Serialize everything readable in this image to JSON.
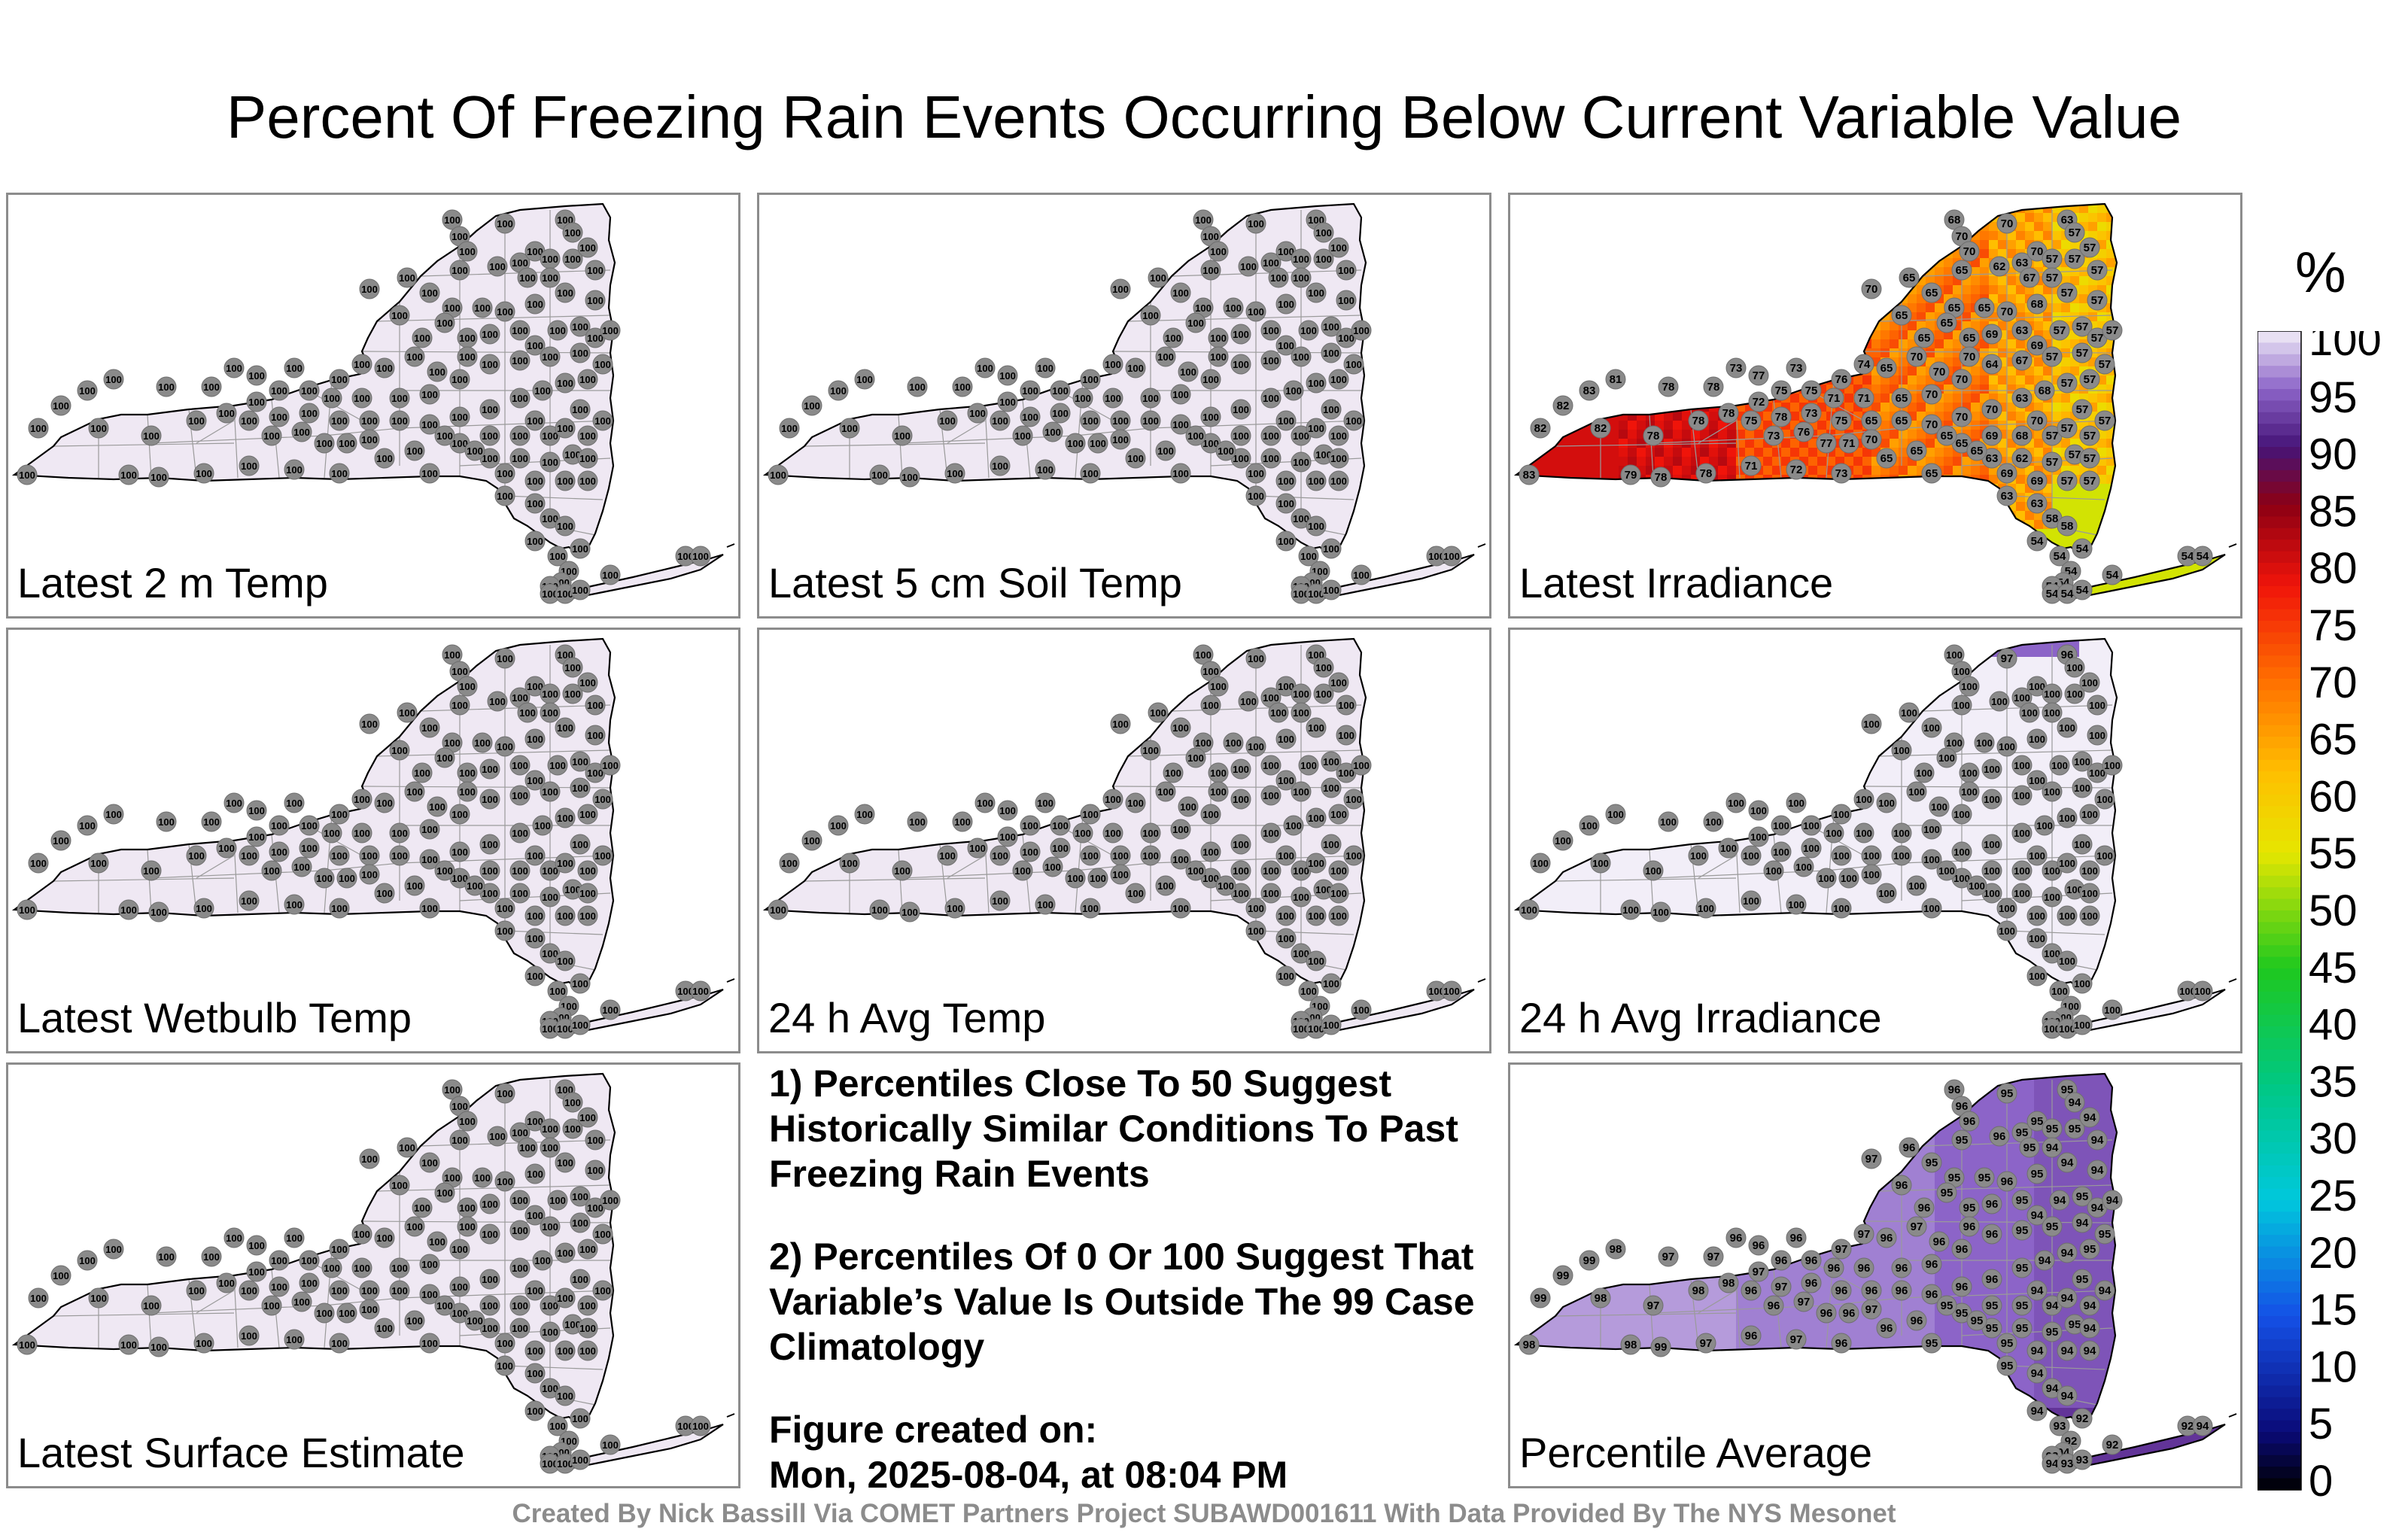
{
  "title": "Percent Of Freezing Rain Events Occurring Below Current Variable Value",
  "colorbar": {
    "unit": "%",
    "ticks": [
      "100",
      "95",
      "90",
      "85",
      "80",
      "75",
      "70",
      "65",
      "60",
      "55",
      "50",
      "45",
      "40",
      "35",
      "30",
      "25",
      "20",
      "15",
      "10",
      "5",
      "0"
    ]
  },
  "panels": [
    {
      "label": "Latest 2 m Temp",
      "mode": "uniform",
      "value": "100"
    },
    {
      "label": "Latest 5 cm Soil Temp",
      "mode": "uniform",
      "value": "100"
    },
    {
      "label": "Latest Irradiance",
      "mode": "irradiance"
    },
    {
      "label": "Latest Wetbulb Temp",
      "mode": "uniform",
      "value": "100"
    },
    {
      "label": "24 h Avg Temp",
      "mode": "uniform",
      "value": "100"
    },
    {
      "label": "24 h Avg Irradiance",
      "mode": "avg_irradiance"
    },
    {
      "label": "Latest Surface Estimate",
      "mode": "uniform",
      "value": "100"
    },
    {
      "label": "Percentile Average",
      "mode": "average"
    }
  ],
  "notes": {
    "note1": "1) Percentiles Close To 50 Suggest Historically Similar Conditions To Past Freezing Rain Events",
    "note2": "2) Percentiles Of 0 Or 100 Suggest That Variable’s Value Is Outside The 99 Case Climatology",
    "created_label": "Figure created on:",
    "created_value": "Mon, 2025-08-04, at 08:04 PM"
  },
  "footer": "Created By Nick Bassill Via COMET Partners Project SUBAWD001611 With Data Provided By The NYS Mesonet",
  "colors": {
    "uniform_fill": "#efe8f3",
    "station_dot": "#8a8a8a",
    "state_outline": "#000000"
  }
}
